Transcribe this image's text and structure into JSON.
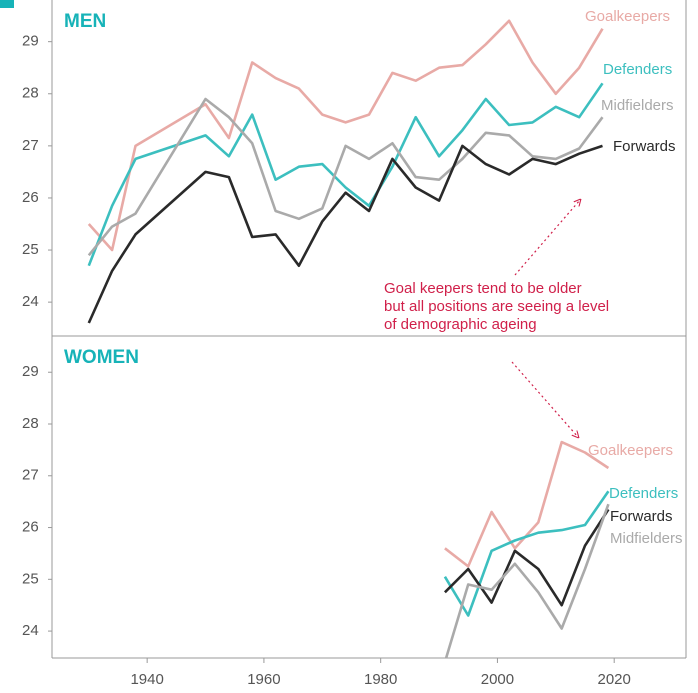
{
  "chart_data": [
    {
      "type": "line",
      "title": "MEN",
      "x": [
        1930,
        1934,
        1938,
        1950,
        1954,
        1958,
        1962,
        1966,
        1970,
        1974,
        1978,
        1982,
        1986,
        1990,
        1994,
        1998,
        2002,
        2006,
        2010,
        2014,
        2018
      ],
      "series": [
        {
          "name": "Goalkeepers",
          "color": "#e8aaa6",
          "values": [
            25.5,
            25.0,
            27.0,
            27.8,
            27.15,
            28.6,
            28.3,
            28.1,
            27.6,
            27.45,
            27.6,
            28.4,
            28.25,
            28.5,
            28.55,
            28.95,
            29.4,
            28.6,
            28.0,
            28.5,
            29.25
          ]
        },
        {
          "name": "Defenders",
          "color": "#3cbfbf",
          "values": [
            24.7,
            25.85,
            26.75,
            27.2,
            26.8,
            27.6,
            26.35,
            26.6,
            26.65,
            26.2,
            25.85,
            26.6,
            27.55,
            26.8,
            27.3,
            27.9,
            27.4,
            27.45,
            27.75,
            27.55,
            28.2
          ]
        },
        {
          "name": "Midfielders",
          "color": "#aaaaaa",
          "values": [
            24.9,
            25.45,
            25.7,
            27.9,
            27.55,
            27.05,
            25.75,
            25.6,
            25.8,
            27.0,
            26.75,
            27.05,
            26.4,
            26.35,
            26.75,
            27.25,
            27.2,
            26.8,
            26.75,
            26.95,
            27.55
          ]
        },
        {
          "name": "Forwards",
          "color": "#2a2a2a",
          "values": [
            23.6,
            24.6,
            25.3,
            26.5,
            26.4,
            25.25,
            25.3,
            24.7,
            25.55,
            26.1,
            25.75,
            26.75,
            26.2,
            25.95,
            27.0,
            26.65,
            26.45,
            26.75,
            26.65,
            26.85,
            27.0
          ]
        }
      ],
      "annotation": [
        "Goal keepers tend to be older",
        "but all positions are seeing a level",
        "of demographic ageing"
      ],
      "xlim": [
        1923.7,
        2032.3
      ],
      "ylim": [
        23.35,
        29.8
      ],
      "yticks": [
        24,
        25,
        26,
        27,
        28,
        29
      ]
    },
    {
      "type": "line",
      "title": "WOMEN",
      "x": [
        1991,
        1995,
        1999,
        2003,
        2007,
        2011,
        2015,
        2019
      ],
      "series": [
        {
          "name": "Goalkeepers",
          "color": "#e8aaa6",
          "values": [
            25.6,
            25.25,
            26.3,
            25.6,
            26.1,
            27.65,
            27.45,
            27.15
          ]
        },
        {
          "name": "Defenders",
          "color": "#3cbfbf",
          "values": [
            25.05,
            24.3,
            25.55,
            25.75,
            25.9,
            25.95,
            26.05,
            26.7
          ]
        },
        {
          "name": "Forwards",
          "color": "#2a2a2a",
          "values": [
            24.75,
            25.2,
            24.55,
            25.55,
            25.2,
            24.5,
            25.65,
            26.35
          ]
        },
        {
          "name": "Midfielders",
          "color": "#aaaaaa",
          "values": [
            23.4,
            24.9,
            24.8,
            25.3,
            24.75,
            24.05,
            25.2,
            26.45
          ]
        }
      ],
      "xlim": [
        1923.7,
        2032.3
      ],
      "ylim": [
        23.48,
        29.7
      ],
      "yticks": [
        24,
        25,
        26,
        27,
        28,
        29
      ],
      "xticks": [
        1940,
        1960,
        1980,
        2000,
        2020
      ]
    }
  ]
}
